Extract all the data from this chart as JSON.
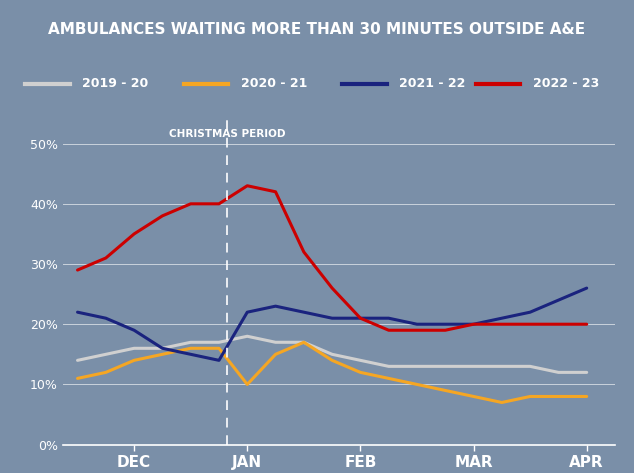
{
  "title": "AMBULANCES WAITING MORE THAN 30 MINUTES OUTSIDE A&E",
  "title_color": "white",
  "title_bg_color": "#1565c0",
  "bg_color": "#7a8fa8",
  "overlay_color": "#6b7f96",
  "grid_color": "white",
  "christmas_label": "CHRISTMAS PERIOD",
  "christmas_x": 5.3,
  "ylim": [
    0,
    55
  ],
  "yticks": [
    0,
    10,
    20,
    30,
    40,
    50
  ],
  "xtick_labels": [
    "DEC",
    "JAN",
    "FEB",
    "MAR",
    "APR"
  ],
  "xtick_positions": [
    2,
    6,
    10,
    14,
    18
  ],
  "series": {
    "2019-20": {
      "color": "#d0d0d0",
      "linewidth": 2.2,
      "x": [
        0,
        1,
        2,
        3,
        4,
        5,
        6,
        7,
        8,
        9,
        10,
        11,
        12,
        13,
        14,
        15,
        16,
        17,
        18
      ],
      "y": [
        14,
        15,
        16,
        16,
        17,
        17,
        18,
        17,
        17,
        15,
        14,
        13,
        13,
        13,
        13,
        13,
        13,
        12,
        12
      ]
    },
    "2020-21": {
      "color": "#f5a623",
      "linewidth": 2.2,
      "x": [
        0,
        1,
        2,
        3,
        4,
        5,
        6,
        7,
        8,
        9,
        10,
        11,
        12,
        13,
        14,
        15,
        16,
        17,
        18
      ],
      "y": [
        11,
        12,
        14,
        15,
        16,
        16,
        10,
        15,
        17,
        14,
        12,
        11,
        10,
        9,
        8,
        7,
        8,
        8,
        8
      ]
    },
    "2021-22": {
      "color": "#1a237e",
      "linewidth": 2.2,
      "x": [
        0,
        1,
        2,
        3,
        4,
        5,
        6,
        7,
        8,
        9,
        10,
        11,
        12,
        13,
        14,
        15,
        16,
        17,
        18
      ],
      "y": [
        22,
        21,
        19,
        16,
        15,
        14,
        22,
        23,
        22,
        21,
        21,
        21,
        20,
        20,
        20,
        21,
        22,
        24,
        26
      ]
    },
    "2022-23": {
      "color": "#cc0000",
      "linewidth": 2.2,
      "x": [
        0,
        1,
        2,
        3,
        4,
        5,
        6,
        7,
        8,
        9,
        10,
        11,
        12,
        13,
        14,
        15,
        16,
        17,
        18
      ],
      "y": [
        29,
        31,
        35,
        38,
        40,
        40,
        43,
        42,
        32,
        26,
        21,
        19,
        19,
        19,
        20,
        20,
        20,
        20,
        20
      ]
    }
  },
  "legend_entries": [
    {
      "label": "2019 - 20",
      "color": "#d0d0d0"
    },
    {
      "label": "2020 - 21",
      "color": "#f5a623"
    },
    {
      "label": "2021 - 22",
      "color": "#1a237e"
    },
    {
      "label": "2022 - 23",
      "color": "#cc0000"
    }
  ]
}
